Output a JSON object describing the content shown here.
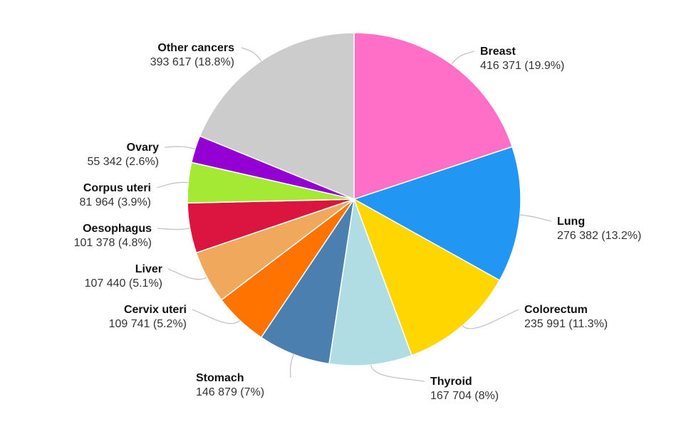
{
  "chart_data": {
    "type": "pie",
    "title": "",
    "start_angle_deg": 0,
    "direction": "clockwise",
    "slices": [
      {
        "name": "Breast",
        "value": 416371,
        "value_label": "416 371 (19.9%)",
        "color": "#ff6ec7"
      },
      {
        "name": "Lung",
        "value": 276382,
        "value_label": "276 382 (13.2%)",
        "color": "#2196f3"
      },
      {
        "name": "Colorectum",
        "value": 235991,
        "value_label": "235 991 (11.3%)",
        "color": "#ffd600"
      },
      {
        "name": "Thyroid",
        "value": 167704,
        "value_label": "167 704 (8%)",
        "color": "#b0dde4"
      },
      {
        "name": "Stomach",
        "value": 146879,
        "value_label": "146 879 (7%)",
        "color": "#4a7fb0"
      },
      {
        "name": "Cervix uteri",
        "value": 109741,
        "value_label": "109 741 (5.2%)",
        "color": "#ff7400"
      },
      {
        "name": "Liver",
        "value": 107440,
        "value_label": "107 440 (5.1%)",
        "color": "#f0a95c"
      },
      {
        "name": "Oesophagus",
        "value": 101378,
        "value_label": "101 378 (4.8%)",
        "color": "#dc1440"
      },
      {
        "name": "Corpus uteri",
        "value": 81964,
        "value_label": "81 964 (3.9%)",
        "color": "#a4e934"
      },
      {
        "name": "Ovary",
        "value": 55342,
        "value_label": "55 342 (2.6%)",
        "color": "#9400d3"
      },
      {
        "name": "Other cancers",
        "value": 393617,
        "value_label": "393 617 (18.8%)",
        "color": "#cccccc"
      }
    ]
  }
}
